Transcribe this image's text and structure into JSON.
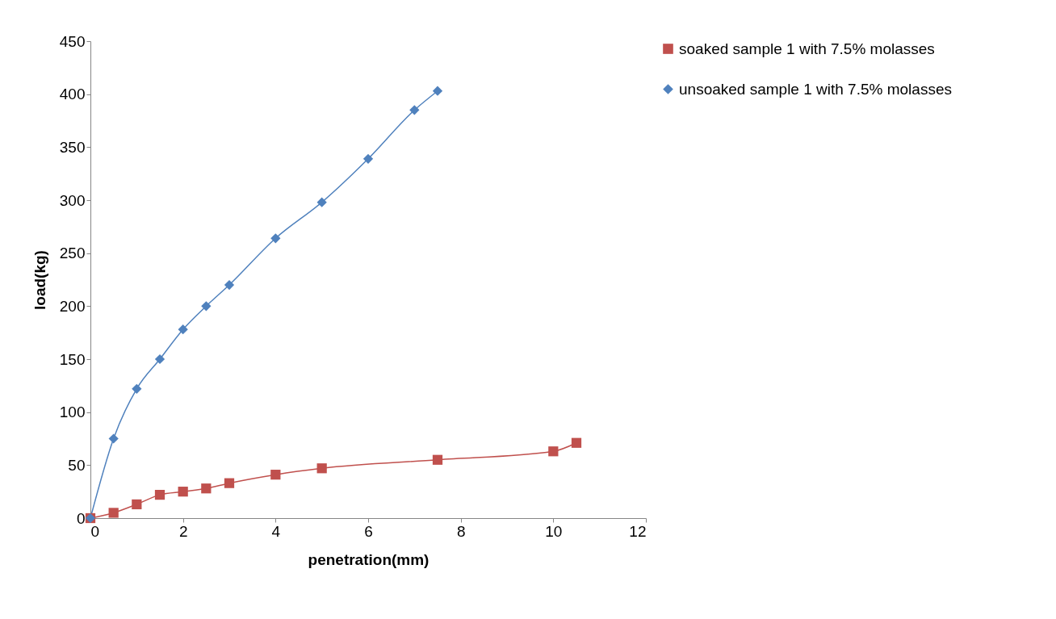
{
  "chart_data": {
    "type": "line",
    "xlabel": "penetration(mm)",
    "ylabel": "load(kg)",
    "xlim": [
      0,
      12
    ],
    "xticks": [
      0,
      2,
      4,
      6,
      8,
      10,
      12
    ],
    "ylim": [
      0,
      450
    ],
    "yticks": [
      0,
      50,
      100,
      150,
      200,
      250,
      300,
      350,
      400,
      450
    ],
    "grid": false,
    "legend": "right",
    "series": [
      {
        "name": "soaked sample 1 with 7.5% molasses",
        "color": "#c0504d",
        "marker": "square",
        "x": [
          0,
          0.5,
          1,
          1.5,
          2,
          2.5,
          3,
          4,
          5,
          7.5,
          10,
          10.5
        ],
        "values": [
          0,
          5,
          13,
          22,
          25,
          28,
          33,
          41,
          47,
          55,
          63,
          71
        ]
      },
      {
        "name": "unsoaked sample 1 with 7.5% molasses",
        "color": "#4f81bd",
        "marker": "diamond",
        "x": [
          0,
          0.5,
          1,
          1.5,
          2,
          2.5,
          3,
          4,
          5,
          6,
          7,
          7.5
        ],
        "values": [
          0,
          75,
          122,
          150,
          178,
          200,
          220,
          264,
          298,
          339,
          385,
          403
        ]
      }
    ]
  }
}
